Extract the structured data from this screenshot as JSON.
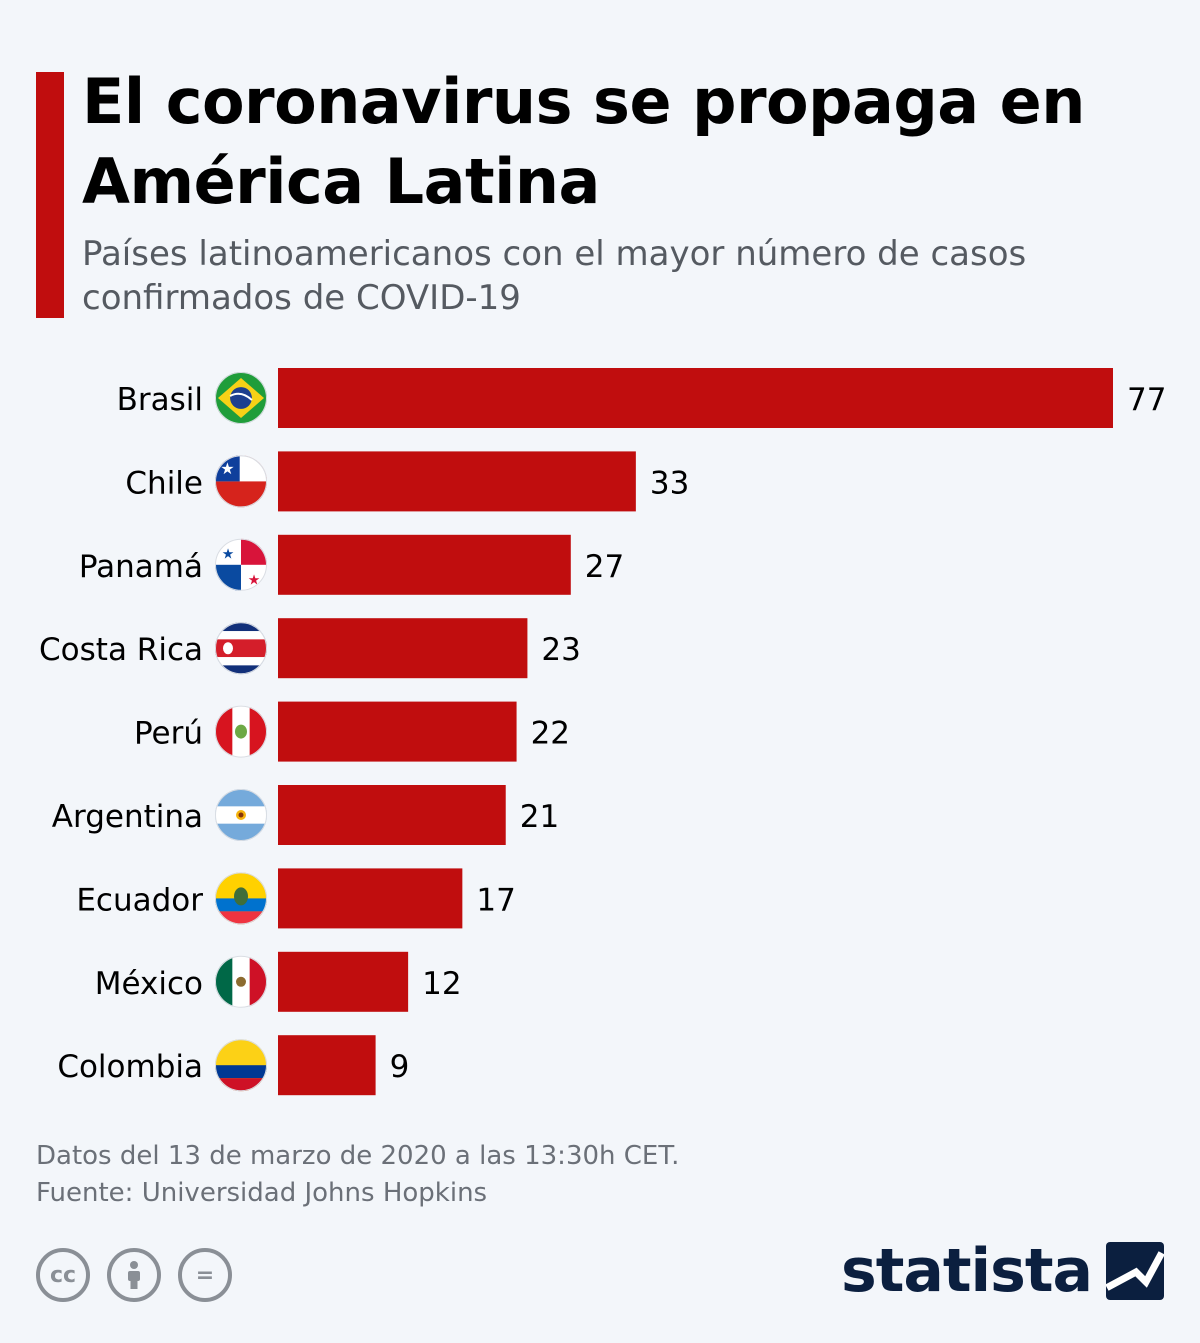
{
  "header": {
    "title": "El coronavirus se propaga en América Latina",
    "subtitle": "Países latinoamericanos con el mayor número de casos confirmados de COVID-19"
  },
  "chart_data": {
    "type": "bar",
    "orientation": "horizontal",
    "categories": [
      "Brasil",
      "Chile",
      "Panamá",
      "Costa Rica",
      "Perú",
      "Argentina",
      "Ecuador",
      "México",
      "Colombia"
    ],
    "values": [
      77,
      33,
      27,
      23,
      22,
      21,
      17,
      12,
      9
    ],
    "title": "El coronavirus se propaga en América Latina",
    "subtitle": "Países latinoamericanos con el mayor número de casos confirmados de COVID-19",
    "xlim": [
      0,
      77
    ],
    "grid": false,
    "data_labels": true,
    "bar_color": "#c00d0e",
    "flags": [
      "brazil",
      "chile",
      "panama",
      "costa-rica",
      "peru",
      "argentina",
      "ecuador",
      "mexico",
      "colombia"
    ]
  },
  "footer": {
    "note": "Datos del 13 de marzo de 2020 a las 13:30h CET.",
    "source": "Fuente: Universidad Johns Hopkins"
  },
  "licenses": [
    {
      "icon": "cc-icon",
      "glyph": "cc"
    },
    {
      "icon": "attribution-icon",
      "glyph": "●"
    },
    {
      "icon": "no-derivatives-icon",
      "glyph": "="
    }
  ],
  "brand": {
    "name": "statista",
    "color": "#0b1f3f"
  }
}
